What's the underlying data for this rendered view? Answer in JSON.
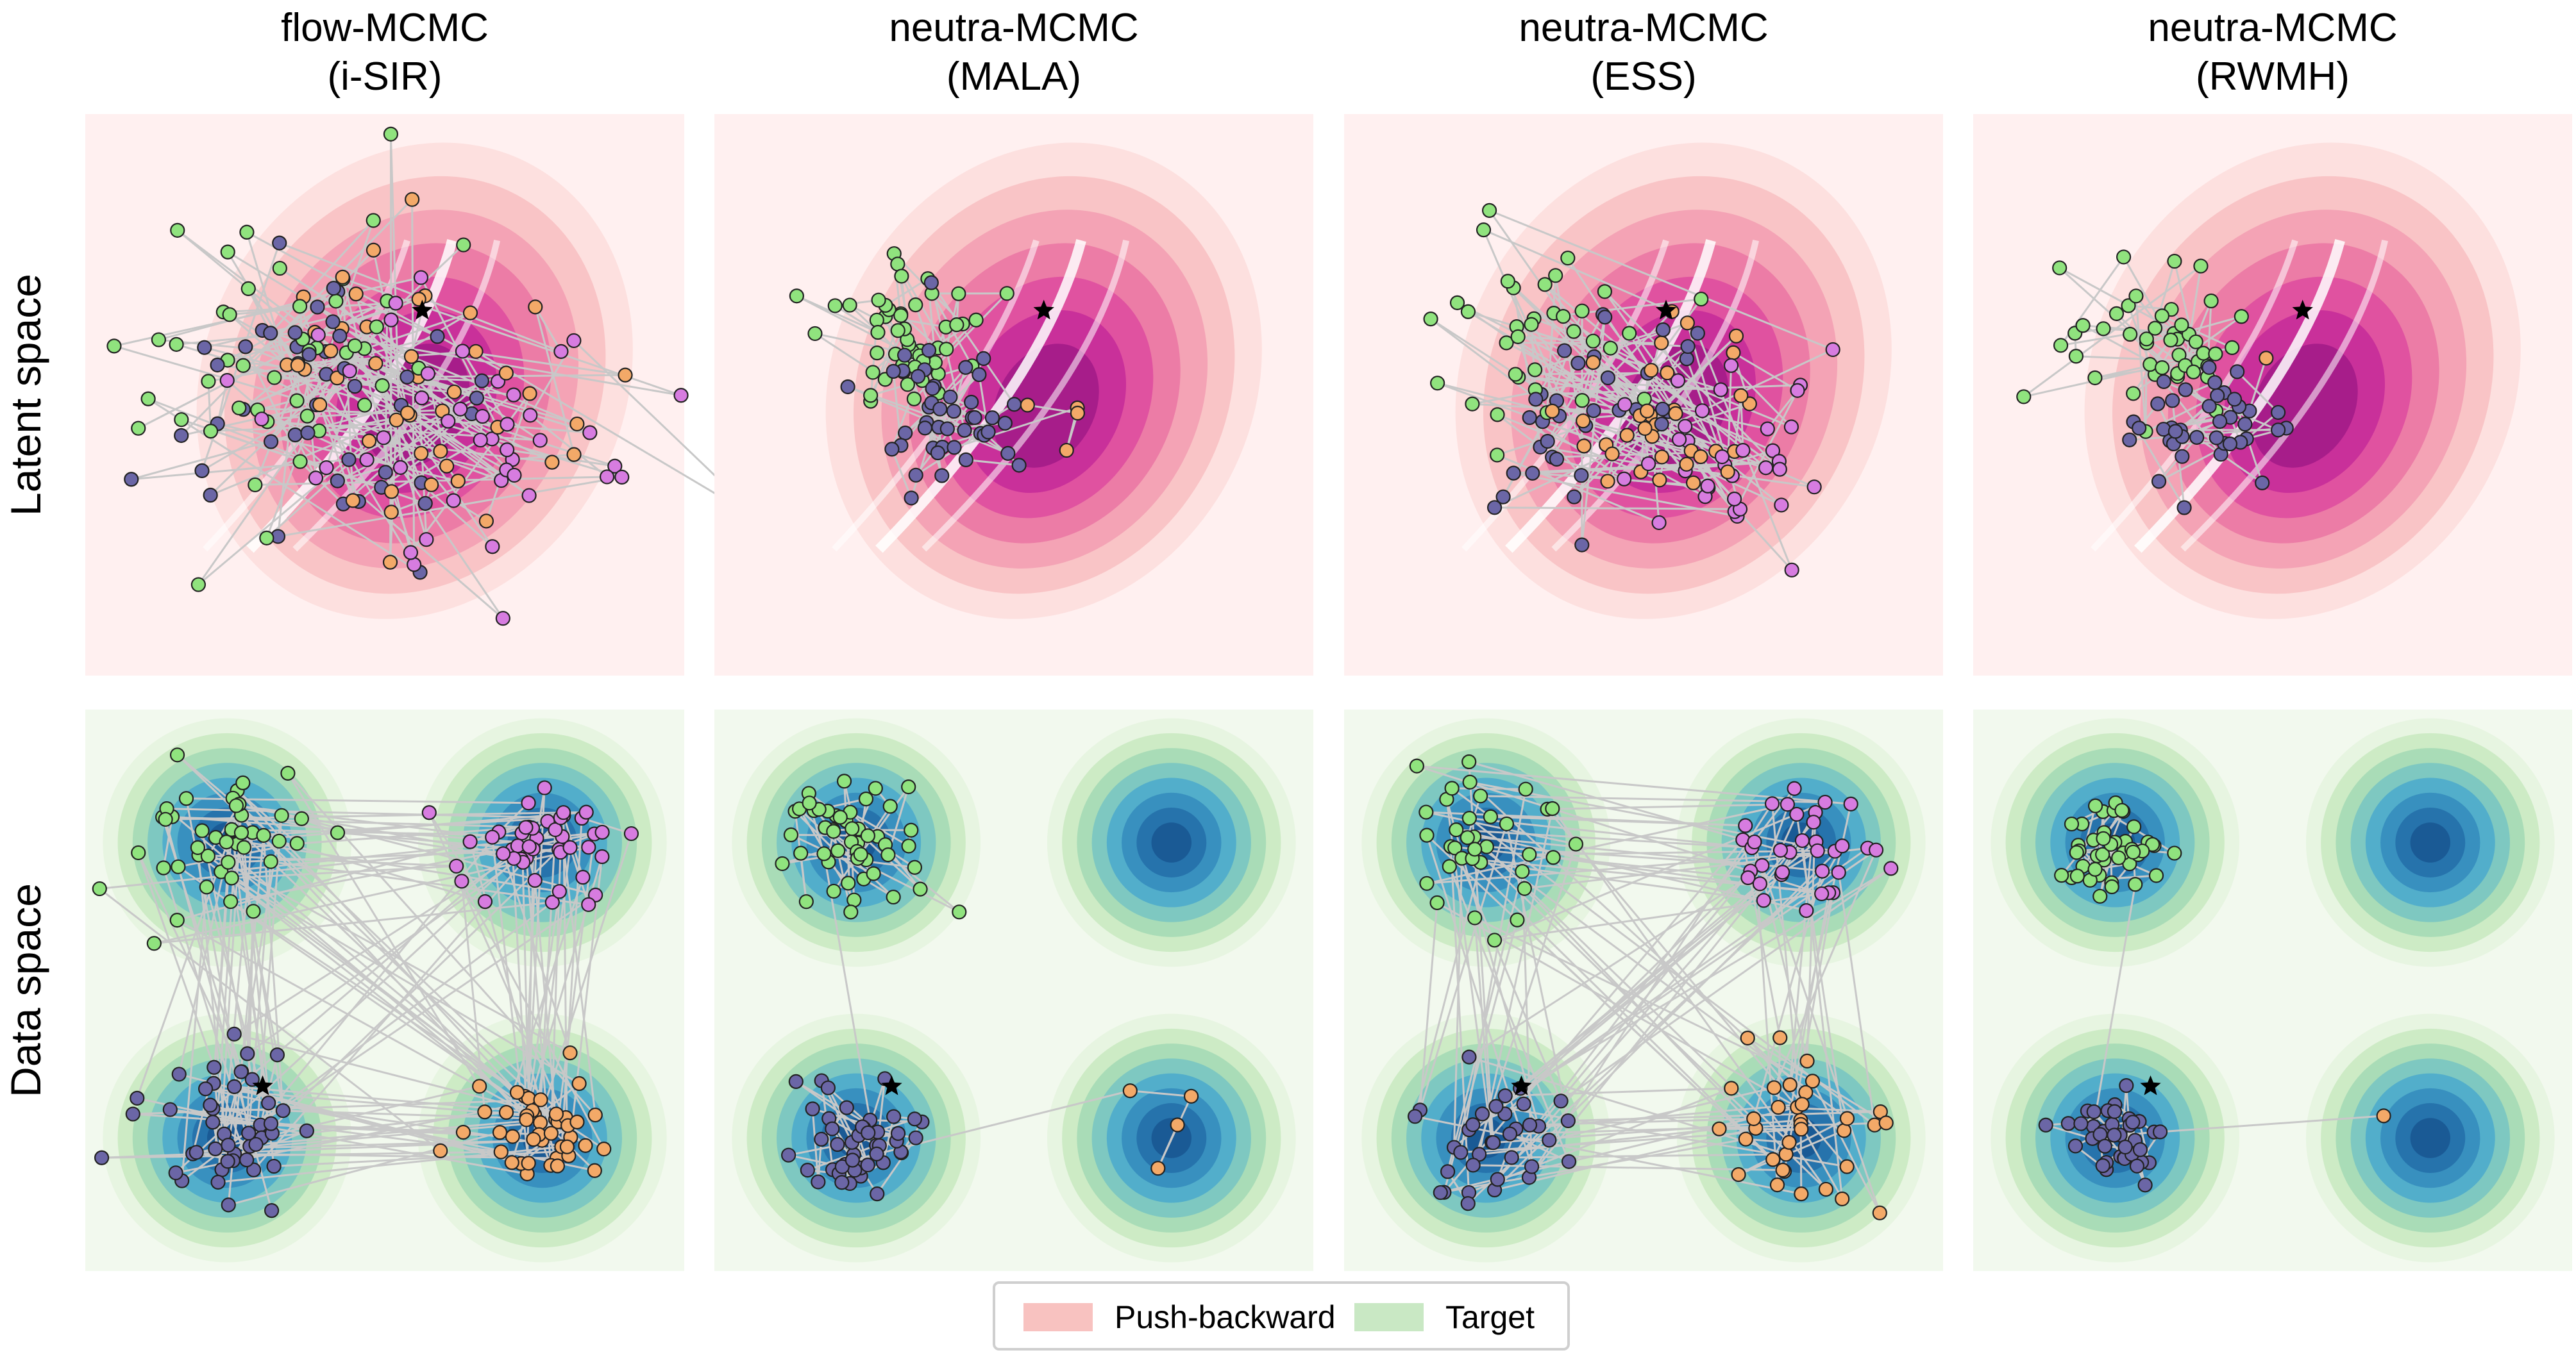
{
  "figure": {
    "columns": [
      {
        "line1": "flow-MCMC",
        "line2": "(i-SIR)",
        "method": "isir"
      },
      {
        "line1": "neutra-MCMC",
        "line2": "(MALA)",
        "method": "mala"
      },
      {
        "line1": "neutra-MCMC",
        "line2": "(ESS)",
        "method": "ess"
      },
      {
        "line1": "neutra-MCMC",
        "line2": "(RWMH)",
        "method": "rwmh"
      }
    ],
    "rows": [
      {
        "label": "Latent space",
        "space": "latent"
      },
      {
        "label": "Data space",
        "space": "data"
      }
    ],
    "legend": [
      {
        "label": "Push-backward",
        "color": "#f8c2c0"
      },
      {
        "label": "Target",
        "color": "#c9e8c4"
      }
    ]
  },
  "colors": {
    "latent_bg": "#fff0f0",
    "data_bg": "#f2f9ee",
    "latent_levels": [
      "#fde0df",
      "#f9c4c6",
      "#f4a3b5",
      "#ec7ca6",
      "#e052a0",
      "#c9309a",
      "#a71d8a"
    ],
    "data_levels": [
      "#e7f5e1",
      "#cdebc5",
      "#a9dcb7",
      "#7ec8c1",
      "#52aecb",
      "#3890bf",
      "#2673ac",
      "#1a5a95"
    ],
    "chain_colors": [
      "#90e37e",
      "#6b66a6",
      "#f3a968",
      "#d77ce0"
    ],
    "trajectory": "#c8c8c8",
    "start_marker": "#000000"
  },
  "chart_data": {
    "type": "scatter",
    "target": {
      "modes": [
        [
          -2,
          2
        ],
        [
          2,
          2
        ],
        [
          -2,
          -2
        ],
        [
          2,
          -2
        ]
      ],
      "mode_labels": [
        "top-left",
        "top-right",
        "bottom-left",
        "bottom-right"
      ],
      "std": 0.55,
      "xlim": [
        -3.8,
        3.8
      ],
      "ylim": [
        -3.8,
        3.8
      ]
    },
    "latent": {
      "xlim": [
        -4,
        4
      ],
      "ylim": [
        -4,
        4
      ]
    },
    "start_point": {
      "latent": {
        "isir": [
          0.5,
          1.2
        ],
        "mala": [
          0.4,
          1.2
        ],
        "ess": [
          0.3,
          1.2
        ],
        "rwmh": [
          0.4,
          1.2
        ]
      },
      "data": {
        "isir": [
          -1.55,
          -1.3
        ],
        "mala": [
          -1.55,
          -1.3
        ],
        "ess": [
          -1.55,
          -1.3
        ],
        "rwmh": [
          -1.55,
          -1.3
        ]
      }
    },
    "chains": {
      "isir": {
        "type": "global",
        "data_modes": [
          0,
          1,
          2,
          3
        ],
        "points_per_mode": 45
      },
      "mala": {
        "type": "local",
        "data_modes": [
          0,
          2,
          3
        ],
        "points_per_mode": [
          50,
          45,
          4
        ]
      },
      "ess": {
        "type": "global",
        "data_modes": [
          0,
          1,
          2,
          3
        ],
        "points_per_mode": 35
      },
      "rwmh": {
        "type": "local",
        "data_modes": [
          0,
          2,
          3
        ],
        "points_per_mode": [
          45,
          40,
          1
        ]
      }
    },
    "legend_position": "bottom-center"
  }
}
